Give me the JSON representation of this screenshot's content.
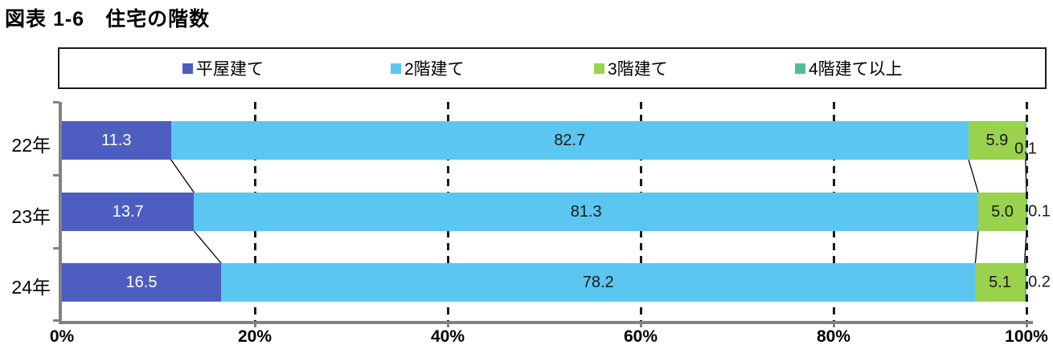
{
  "figure": {
    "title": "図表 1-6　住宅の階数"
  },
  "chart_data": {
    "type": "bar",
    "stacked": true,
    "orientation": "horizontal",
    "title": "図表 1-6　住宅の階数",
    "categories": [
      "22年",
      "23年",
      "24年"
    ],
    "series": [
      {
        "name": "平屋建て",
        "color": "#4d5ec0",
        "values": [
          11.3,
          13.7,
          16.5
        ],
        "labels": [
          "11.3",
          "13.7",
          "16.5"
        ],
        "label_color": "#ffffff",
        "label_position": "inside"
      },
      {
        "name": "2階建て",
        "color": "#5bc7f0",
        "values": [
          82.7,
          81.3,
          78.2
        ],
        "labels": [
          "82.7",
          "81.3",
          "78.2"
        ],
        "label_color": "#1a1a1a",
        "label_position": "inside"
      },
      {
        "name": "3階建て",
        "color": "#9ad24e",
        "values": [
          5.9,
          5.0,
          5.1
        ],
        "labels": [
          "5.9",
          "5.0",
          "5.1"
        ],
        "label_color": "#1a1a1a",
        "label_position": "inside"
      },
      {
        "name": "4階建て以上",
        "color": "#52bd94",
        "values": [
          0.1,
          0.1,
          0.2
        ],
        "labels": [
          "0.1",
          "0.1",
          "0.2"
        ],
        "label_color": "#1a1a1a",
        "label_position": "outside"
      }
    ],
    "x_ticks": [
      "0%",
      "20%",
      "40%",
      "60%",
      "80%",
      "100%"
    ],
    "xlim": [
      0,
      100
    ],
    "legend_position": "top",
    "gridlines": "vertical-dashed",
    "axis_color": "#828282",
    "gridline_color": "#1a1a1a"
  }
}
